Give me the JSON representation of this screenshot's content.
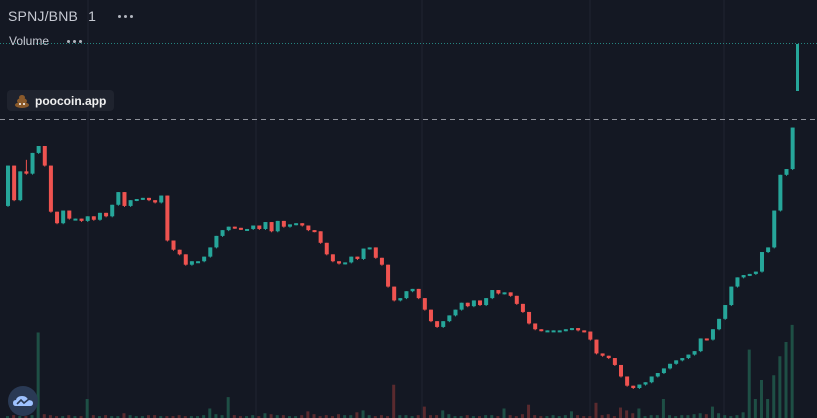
{
  "header": {
    "symbol": "SPNJ/BNB",
    "interval": "1"
  },
  "volume_pane": {
    "label": "Volume"
  },
  "watermark_badge": {
    "text": "poocoin.app",
    "icon": "poop-emoji-icon"
  },
  "logo": {
    "icon": "tradingview-cloud-icon"
  },
  "colors": {
    "background": "#141823",
    "up": "#26a69a",
    "down": "#ef5350",
    "volume_up": "#1e4f45",
    "volume_down": "#5a2a2e",
    "grid": "#1f2431",
    "separator": "#8e919a",
    "volume_dotted": "#2aa198",
    "text": "#c7cad3"
  },
  "chart_data": {
    "type": "candlestick",
    "series": "SPNJ/BNB",
    "interval": "1",
    "price_axis_visible": false,
    "time_axis_visible": false,
    "grid": true,
    "note": "values are relative price units (no axis printed); 0 = lowest level shown",
    "candles": [
      [
        210,
        210,
        245,
        245
      ],
      [
        245,
        245,
        215,
        215
      ],
      [
        215,
        215,
        235,
        240
      ],
      [
        240,
        245,
        250,
        238
      ],
      [
        238,
        240,
        252,
        256
      ],
      [
        256,
        258,
        262,
        262
      ],
      [
        262,
        262,
        245,
        245
      ],
      [
        245,
        245,
        205,
        205
      ],
      [
        205,
        205,
        195,
        195
      ],
      [
        195,
        195,
        206,
        206
      ],
      [
        206,
        206,
        199,
        199
      ],
      [
        199,
        199,
        199,
        199
      ],
      [
        199,
        199,
        197,
        197
      ],
      [
        197,
        197,
        201,
        201
      ],
      [
        201,
        201,
        198,
        198
      ],
      [
        198,
        198,
        204,
        204
      ],
      [
        204,
        204,
        201,
        201
      ],
      [
        201,
        201,
        211,
        211
      ],
      [
        211,
        211,
        218,
        222
      ],
      [
        222,
        222,
        210,
        210
      ],
      [
        210,
        210,
        215,
        215
      ],
      [
        215,
        215,
        216,
        216
      ],
      [
        216,
        216,
        217,
        217
      ],
      [
        217,
        217,
        215,
        215
      ],
      [
        215,
        215,
        213,
        213
      ],
      [
        213,
        213,
        219,
        219
      ],
      [
        219,
        219,
        180,
        180
      ],
      [
        180,
        180,
        172,
        172
      ],
      [
        172,
        172,
        168,
        168
      ],
      [
        168,
        168,
        159,
        159
      ],
      [
        159,
        159,
        162,
        162
      ],
      [
        162,
        162,
        162,
        162
      ],
      [
        162,
        162,
        166,
        166
      ],
      [
        166,
        166,
        174,
        174
      ],
      [
        174,
        174,
        184,
        184
      ],
      [
        184,
        184,
        189,
        189
      ],
      [
        189,
        189,
        192,
        192
      ],
      [
        192,
        192,
        191,
        191
      ],
      [
        191,
        191,
        190,
        190
      ],
      [
        190,
        190,
        190,
        190
      ],
      [
        190,
        190,
        193,
        193
      ],
      [
        193,
        193,
        190,
        190
      ],
      [
        190,
        190,
        196,
        196
      ],
      [
        196,
        196,
        188,
        188
      ],
      [
        188,
        188,
        197,
        197
      ],
      [
        197,
        197,
        192,
        192
      ],
      [
        192,
        192,
        194,
        194
      ],
      [
        194,
        194,
        195,
        195
      ],
      [
        195,
        195,
        193,
        193
      ],
      [
        193,
        193,
        189,
        189
      ],
      [
        189,
        189,
        188,
        188
      ],
      [
        188,
        188,
        178,
        178
      ],
      [
        178,
        178,
        168,
        168
      ],
      [
        168,
        168,
        162,
        162
      ],
      [
        162,
        162,
        160,
        160
      ],
      [
        160,
        160,
        161,
        161
      ],
      [
        161,
        161,
        166,
        166
      ],
      [
        166,
        166,
        164,
        164
      ],
      [
        164,
        164,
        173,
        173
      ],
      [
        173,
        173,
        174,
        174
      ],
      [
        174,
        174,
        165,
        165
      ],
      [
        165,
        165,
        159,
        159
      ],
      [
        159,
        159,
        140,
        140
      ],
      [
        140,
        140,
        128,
        128
      ],
      [
        128,
        128,
        130,
        130
      ],
      [
        130,
        130,
        136,
        136
      ],
      [
        136,
        136,
        138,
        138
      ],
      [
        138,
        138,
        130,
        130
      ],
      [
        130,
        130,
        120,
        120
      ],
      [
        120,
        120,
        110,
        110
      ],
      [
        110,
        110,
        105,
        105
      ],
      [
        105,
        105,
        110,
        110
      ],
      [
        110,
        110,
        115,
        115
      ],
      [
        115,
        115,
        120,
        120
      ],
      [
        120,
        120,
        126,
        126
      ],
      [
        126,
        126,
        123,
        123
      ],
      [
        123,
        123,
        128,
        128
      ],
      [
        128,
        128,
        124,
        124
      ],
      [
        124,
        124,
        130,
        130
      ],
      [
        130,
        130,
        137,
        137
      ],
      [
        137,
        137,
        134,
        134
      ],
      [
        134,
        134,
        135,
        135
      ],
      [
        135,
        135,
        132,
        132
      ],
      [
        132,
        132,
        125,
        125
      ],
      [
        125,
        125,
        118,
        118
      ],
      [
        118,
        118,
        108,
        108
      ],
      [
        108,
        108,
        103,
        103
      ],
      [
        103,
        103,
        102,
        102
      ],
      [
        102,
        102,
        102,
        102
      ],
      [
        102,
        102,
        102,
        102
      ],
      [
        102,
        102,
        102,
        102
      ],
      [
        102,
        102,
        103,
        103
      ],
      [
        103,
        103,
        104,
        104
      ],
      [
        104,
        104,
        102,
        102
      ],
      [
        102,
        102,
        101,
        101
      ],
      [
        101,
        101,
        94,
        94
      ],
      [
        94,
        94,
        82,
        82
      ],
      [
        82,
        82,
        80,
        80
      ],
      [
        80,
        80,
        78,
        78
      ],
      [
        78,
        78,
        72,
        72
      ],
      [
        72,
        72,
        62,
        62
      ],
      [
        62,
        62,
        54,
        54
      ],
      [
        54,
        54,
        52,
        52
      ],
      [
        52,
        52,
        55,
        55
      ],
      [
        55,
        55,
        57,
        57
      ],
      [
        57,
        57,
        62,
        62
      ],
      [
        62,
        62,
        65,
        65
      ],
      [
        65,
        65,
        69,
        69
      ],
      [
        69,
        69,
        73,
        73
      ],
      [
        73,
        73,
        76,
        76
      ],
      [
        76,
        76,
        78,
        78
      ],
      [
        78,
        78,
        81,
        81
      ],
      [
        81,
        81,
        84,
        84
      ],
      [
        84,
        84,
        95,
        95
      ],
      [
        95,
        95,
        94,
        94
      ],
      [
        94,
        94,
        103,
        103
      ],
      [
        103,
        103,
        112,
        112
      ],
      [
        112,
        112,
        124,
        124
      ],
      [
        124,
        124,
        140,
        140
      ],
      [
        140,
        140,
        148,
        148
      ],
      [
        148,
        148,
        150,
        150
      ],
      [
        150,
        150,
        151,
        151
      ],
      [
        151,
        151,
        153,
        153
      ],
      [
        153,
        153,
        170,
        170
      ],
      [
        170,
        170,
        174,
        174
      ],
      [
        174,
        174,
        206,
        206
      ],
      [
        206,
        206,
        237,
        237
      ],
      [
        237,
        237,
        242,
        242
      ],
      [
        242,
        242,
        245,
        278
      ]
    ],
    "volume": [
      2,
      3,
      2,
      2,
      3,
      90,
      4,
      3,
      2,
      2,
      3,
      2,
      2,
      20,
      3,
      2,
      3,
      2,
      2,
      5,
      3,
      2,
      2,
      3,
      3,
      2,
      2,
      2,
      3,
      2,
      2,
      2,
      3,
      10,
      4,
      3,
      22,
      3,
      2,
      2,
      3,
      2,
      5,
      4,
      3,
      3,
      2,
      2,
      3,
      7,
      4,
      2,
      3,
      2,
      4,
      3,
      3,
      6,
      8,
      3,
      2,
      3,
      2,
      35,
      3,
      3,
      2,
      3,
      12,
      3,
      3,
      8,
      4,
      2,
      2,
      3,
      2,
      2,
      3,
      3,
      2,
      10,
      3,
      2,
      4,
      14,
      3,
      2,
      2,
      3,
      2,
      3,
      7,
      3,
      2,
      2,
      16,
      3,
      4,
      2,
      11,
      8,
      5,
      10,
      2,
      3,
      3,
      20,
      3,
      2,
      3,
      3,
      4,
      5,
      4,
      12,
      5,
      3,
      2,
      3,
      6,
      72,
      20,
      40,
      20,
      45,
      65,
      80,
      98
    ]
  }
}
